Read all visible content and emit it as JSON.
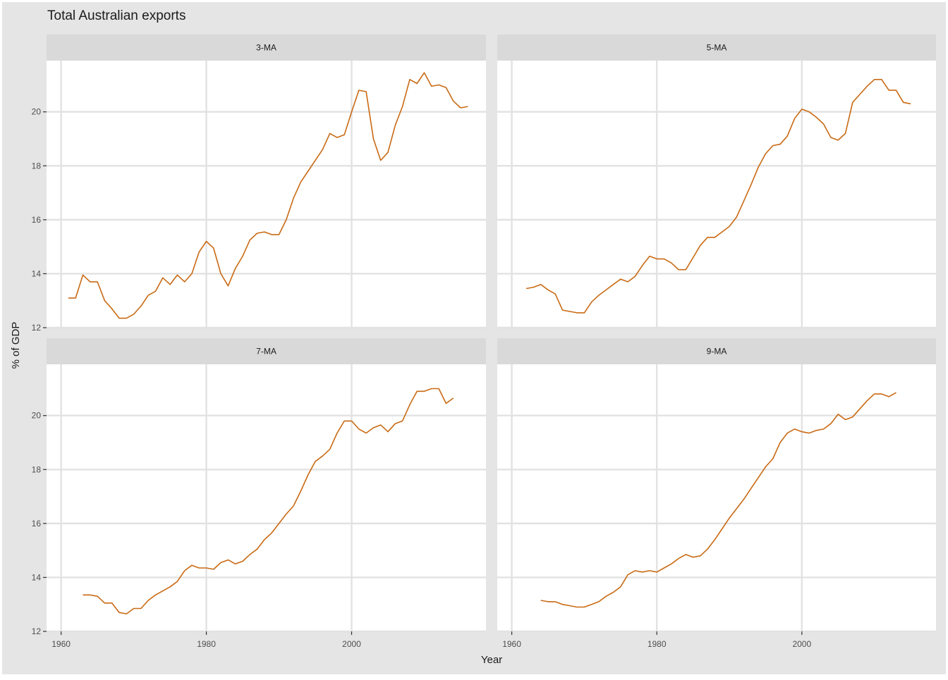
{
  "title": "Total Australian exports",
  "colors": {
    "line": "#C96A14",
    "panel_bg": "#FFFFFF",
    "plot_bg": "#E5E5E5",
    "strip_bg": "#D9D9D9",
    "grid": "#E2E2E2",
    "text": "#1A1A1A",
    "tick_text": "#4D4D4D"
  },
  "chart_data": {
    "type": "line",
    "title": "Total Australian exports",
    "xlabel": "Year",
    "ylabel": "% of GDP",
    "xlim": [
      1958,
      2018.5
    ],
    "ylim": [
      12,
      21.9
    ],
    "x_ticks": [
      1960,
      1980,
      2000
    ],
    "y_ticks": [
      12,
      14,
      16,
      18,
      20
    ],
    "grid": true,
    "panels": [
      {
        "name": "3-MA",
        "x": [
          1961,
          1962,
          1963,
          1964,
          1965,
          1966,
          1967,
          1968,
          1969,
          1970,
          1971,
          1972,
          1973,
          1974,
          1975,
          1976,
          1977,
          1978,
          1979,
          1980,
          1981,
          1982,
          1983,
          1984,
          1985,
          1986,
          1987,
          1988,
          1989,
          1990,
          1991,
          1992,
          1993,
          1994,
          1995,
          1996,
          1997,
          1998,
          1999,
          2000,
          2001,
          2002,
          2003,
          2004,
          2005,
          2006,
          2007,
          2008,
          2009,
          2010,
          2011,
          2012,
          2013,
          2014,
          2015,
          2016
        ],
        "values": [
          13.1,
          13.1,
          13.95,
          13.7,
          13.7,
          13.0,
          12.7,
          12.35,
          12.35,
          12.5,
          12.8,
          13.2,
          13.35,
          13.85,
          13.6,
          13.95,
          13.7,
          14.0,
          14.8,
          15.2,
          14.95,
          14.0,
          13.55,
          14.2,
          14.65,
          15.25,
          15.5,
          15.55,
          15.45,
          15.45,
          16.0,
          16.8,
          17.4,
          17.8,
          18.2,
          18.6,
          19.2,
          19.05,
          19.15,
          20.0,
          20.8,
          20.75,
          19.0,
          18.2,
          18.5,
          19.5,
          20.2,
          21.2,
          21.05,
          21.45,
          20.95,
          21.0,
          20.9,
          20.4,
          20.15,
          20.2
        ]
      },
      {
        "name": "5-MA",
        "x": [
          1962,
          1963,
          1964,
          1965,
          1966,
          1967,
          1968,
          1969,
          1970,
          1971,
          1972,
          1973,
          1974,
          1975,
          1976,
          1977,
          1978,
          1979,
          1980,
          1981,
          1982,
          1983,
          1984,
          1985,
          1986,
          1987,
          1988,
          1989,
          1990,
          1991,
          1992,
          1993,
          1994,
          1995,
          1996,
          1997,
          1998,
          1999,
          2000,
          2001,
          2002,
          2003,
          2004,
          2005,
          2006,
          2007,
          2008,
          2009,
          2010,
          2011,
          2012,
          2013,
          2014,
          2015
        ],
        "values": [
          13.45,
          13.5,
          13.6,
          13.4,
          13.25,
          12.65,
          12.6,
          12.55,
          12.55,
          12.95,
          13.2,
          13.4,
          13.6,
          13.8,
          13.7,
          13.9,
          14.3,
          14.65,
          14.55,
          14.55,
          14.4,
          14.15,
          14.15,
          14.6,
          15.05,
          15.35,
          15.35,
          15.55,
          15.75,
          16.1,
          16.7,
          17.3,
          17.95,
          18.45,
          18.75,
          18.8,
          19.1,
          19.75,
          20.1,
          20.0,
          19.8,
          19.55,
          19.05,
          18.95,
          19.2,
          20.35,
          20.65,
          20.95,
          21.2,
          21.2,
          20.8,
          20.8,
          20.35,
          20.3
        ]
      },
      {
        "name": "7-MA",
        "x": [
          1963,
          1964,
          1965,
          1966,
          1967,
          1968,
          1969,
          1970,
          1971,
          1972,
          1973,
          1974,
          1975,
          1976,
          1977,
          1978,
          1979,
          1980,
          1981,
          1982,
          1983,
          1984,
          1985,
          1986,
          1987,
          1988,
          1989,
          1990,
          1991,
          1992,
          1993,
          1994,
          1995,
          1996,
          1997,
          1998,
          1999,
          2000,
          2001,
          2002,
          2003,
          2004,
          2005,
          2006,
          2007,
          2008,
          2009,
          2010,
          2011,
          2012,
          2013,
          2014
        ],
        "values": [
          13.35,
          13.35,
          13.3,
          13.05,
          13.05,
          12.7,
          12.65,
          12.85,
          12.85,
          13.15,
          13.35,
          13.5,
          13.65,
          13.85,
          14.25,
          14.45,
          14.35,
          14.35,
          14.3,
          14.55,
          14.65,
          14.5,
          14.6,
          14.85,
          15.05,
          15.4,
          15.65,
          16.0,
          16.35,
          16.65,
          17.2,
          17.8,
          18.3,
          18.5,
          18.75,
          19.35,
          19.8,
          19.8,
          19.5,
          19.35,
          19.55,
          19.65,
          19.4,
          19.7,
          19.8,
          20.4,
          20.9,
          20.9,
          21.0,
          21.0,
          20.45,
          20.65
        ]
      },
      {
        "name": "9-MA",
        "x": [
          1964,
          1965,
          1966,
          1967,
          1968,
          1969,
          1970,
          1971,
          1972,
          1973,
          1974,
          1975,
          1976,
          1977,
          1978,
          1979,
          1980,
          1981,
          1982,
          1983,
          1984,
          1985,
          1986,
          1987,
          1988,
          1989,
          1990,
          1991,
          1992,
          1993,
          1994,
          1995,
          1996,
          1997,
          1998,
          1999,
          2000,
          2001,
          2002,
          2003,
          2004,
          2005,
          2006,
          2007,
          2008,
          2009,
          2010,
          2011,
          2012,
          2013
        ],
        "values": [
          13.15,
          13.1,
          13.1,
          13.0,
          12.95,
          12.9,
          12.9,
          13.0,
          13.1,
          13.3,
          13.45,
          13.65,
          14.1,
          14.25,
          14.2,
          14.25,
          14.2,
          14.35,
          14.5,
          14.7,
          14.85,
          14.75,
          14.8,
          15.05,
          15.4,
          15.8,
          16.2,
          16.55,
          16.9,
          17.3,
          17.7,
          18.1,
          18.4,
          19.0,
          19.35,
          19.5,
          19.4,
          19.35,
          19.45,
          19.5,
          19.7,
          20.05,
          19.85,
          19.95,
          20.25,
          20.55,
          20.8,
          20.8,
          20.7,
          20.85
        ]
      }
    ]
  }
}
